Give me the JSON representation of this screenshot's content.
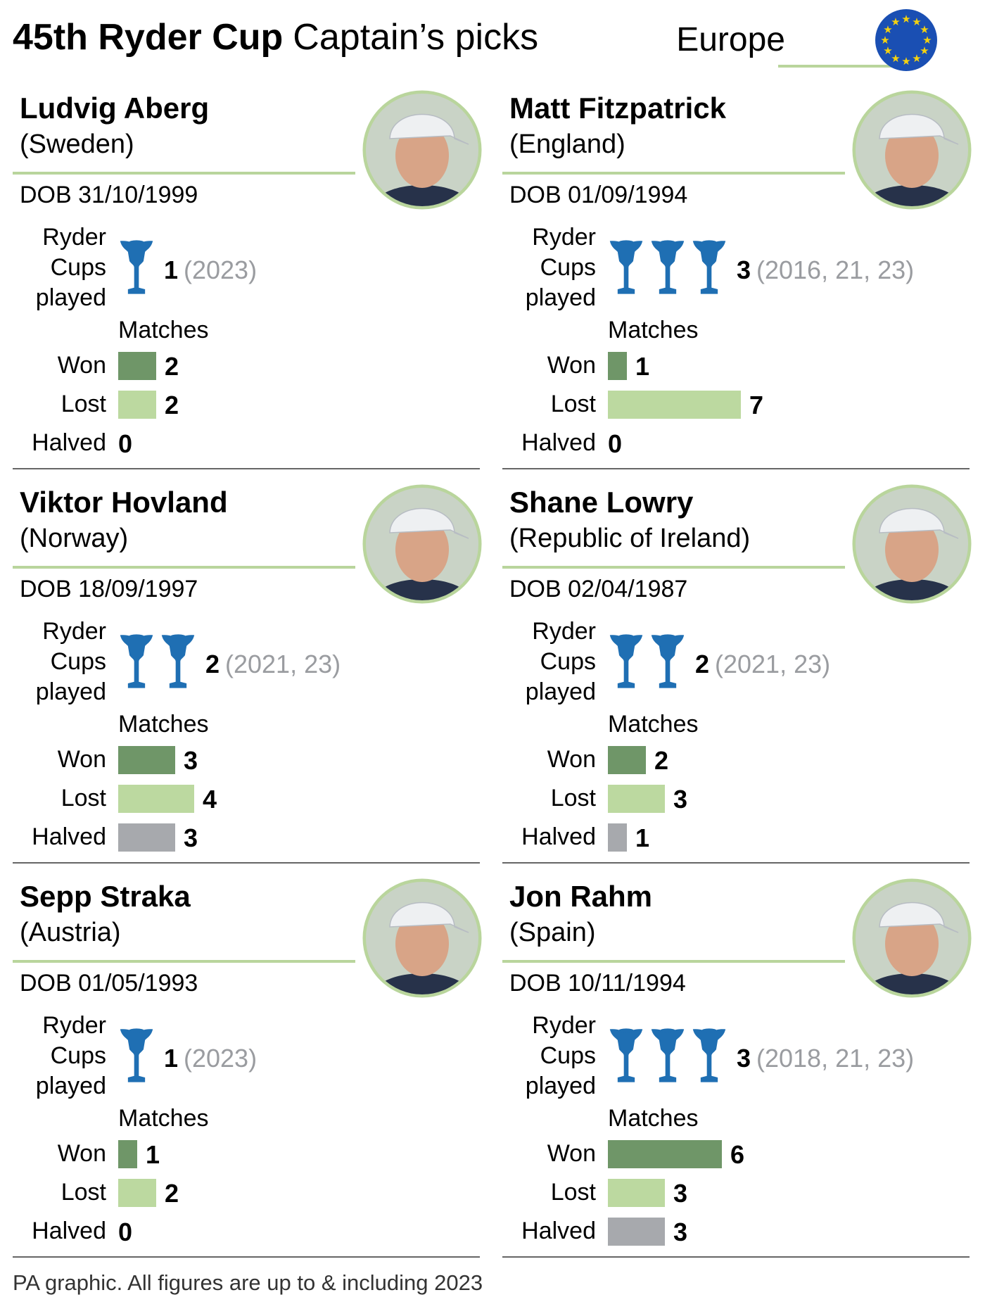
{
  "header": {
    "title_bold": "45th Ryder Cup",
    "title_light": "Captain’s picks",
    "team": "Europe",
    "flag_icon": "eu-flag-icon"
  },
  "labels": {
    "ryder": "Ryder",
    "cups": "Cups",
    "played": "played",
    "matches": "Matches",
    "won": "Won",
    "lost": "Lost",
    "halved": "Halved"
  },
  "colors": {
    "won": "#6f9668",
    "lost": "#bcd9a0",
    "halved": "#a7a9ad",
    "trophy": "#1f6fb3",
    "divider": "#b9d59c",
    "flag": "#1a4fb3",
    "stars": "#f5d20f"
  },
  "players": [
    {
      "name": "Ludvig Aberg",
      "country": "(Sweden)",
      "dob": "DOB 31/10/1999",
      "cups": 1,
      "years": "(2023)",
      "won": 2,
      "lost": 2,
      "halved": 0,
      "photo": "ludvig-aberg-portrait"
    },
    {
      "name": "Matt Fitzpatrick",
      "country": "(England)",
      "dob": "DOB 01/09/1994",
      "cups": 3,
      "years": "(2016, 21, 23)",
      "won": 1,
      "lost": 7,
      "halved": 0,
      "photo": "matt-fitzpatrick-portrait"
    },
    {
      "name": "Viktor Hovland",
      "country": "(Norway)",
      "dob": "DOB 18/09/1997",
      "cups": 2,
      "years": "(2021, 23)",
      "won": 3,
      "lost": 4,
      "halved": 3,
      "photo": "viktor-hovland-portrait"
    },
    {
      "name": "Shane Lowry",
      "country": "(Republic of Ireland)",
      "dob": "DOB 02/04/1987",
      "cups": 2,
      "years": "(2021, 23)",
      "won": 2,
      "lost": 3,
      "halved": 1,
      "photo": "shane-lowry-portrait"
    },
    {
      "name": "Sepp Straka",
      "country": "(Austria)",
      "dob": "DOB 01/05/1993",
      "cups": 1,
      "years": "(2023)",
      "won": 1,
      "lost": 2,
      "halved": 0,
      "photo": "sepp-straka-portrait"
    },
    {
      "name": "Jon Rahm",
      "country": "(Spain)",
      "dob": "DOB 10/11/1994",
      "cups": 3,
      "years": "(2018, 21, 23)",
      "won": 6,
      "lost": 3,
      "halved": 3,
      "photo": "jon-rahm-portrait"
    }
  ],
  "footer": "PA graphic. All figures are up to & including 2023"
}
